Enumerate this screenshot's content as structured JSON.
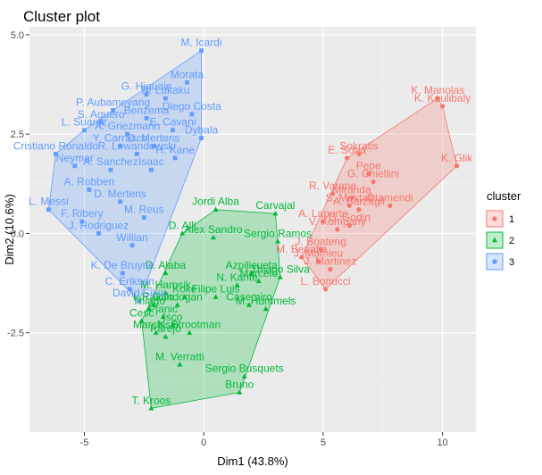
{
  "chart_data": {
    "type": "scatter",
    "title": "Cluster plot",
    "xlabel": "Dim1 (43.8%)",
    "ylabel": "Dim2 (10.6%)",
    "xlim": [
      -7.3,
      11.4
    ],
    "ylim": [
      -5.0,
      5.2
    ],
    "xticks": [
      -5,
      0,
      5,
      10
    ],
    "yticks": [
      -2.5,
      0.0,
      2.5,
      5.0
    ],
    "ytick_labels": [
      "-2.5",
      "0.0",
      "2.5",
      "5.0"
    ],
    "grid": true,
    "legend": {
      "title": "cluster",
      "position": "right"
    },
    "series": [
      {
        "name": "1",
        "color": "#F8766D",
        "points": [
          {
            "label": "K. Manolas",
            "x": 9.8,
            "y": 3.4
          },
          {
            "label": "K. Koulibaly",
            "x": 10.0,
            "y": 3.2
          },
          {
            "label": "K. Glik",
            "x": 10.6,
            "y": 1.7
          },
          {
            "label": "Sokratis",
            "x": 6.5,
            "y": 2.0
          },
          {
            "label": "E. Soria",
            "x": 6.0,
            "y": 1.9
          },
          {
            "label": "Pepe",
            "x": 6.9,
            "y": 1.5
          },
          {
            "label": "G. Chiellini",
            "x": 7.1,
            "y": 1.3
          },
          {
            "label": "R. Varane",
            "x": 5.4,
            "y": 1.0
          },
          {
            "label": "Miranda",
            "x": 6.2,
            "y": 0.9
          },
          {
            "label": "S. Mustafi",
            "x": 6.1,
            "y": 0.7
          },
          {
            "label": "A. Barzagli",
            "x": 6.5,
            "y": 0.6
          },
          {
            "label": "A. Laporte",
            "x": 5.0,
            "y": 0.3
          },
          {
            "label": "D. Godin",
            "x": 6.1,
            "y": 0.2
          },
          {
            "label": "V. Kompany",
            "x": 5.6,
            "y": 0.1
          },
          {
            "label": "J. Boateng",
            "x": 4.9,
            "y": -0.4
          },
          {
            "label": "M. Benatia",
            "x": 4.1,
            "y": -0.6
          },
          {
            "label": "J. Mathieu",
            "x": 4.8,
            "y": -0.7
          },
          {
            "label": "J. Martinez",
            "x": 5.3,
            "y": -0.9
          },
          {
            "label": "L. Bonucci",
            "x": 5.1,
            "y": -1.4
          },
          {
            "label": "Otamendi",
            "x": 7.8,
            "y": 0.7
          }
        ]
      },
      {
        "name": "2",
        "color": "#00BA38",
        "points": [
          {
            "label": "Jordi Alba",
            "x": 0.5,
            "y": 0.6
          },
          {
            "label": "Carvajal",
            "x": 3.0,
            "y": 0.5
          },
          {
            "label": "D. Alli",
            "x": -0.9,
            "y": 0.0
          },
          {
            "label": "Alex Sandro",
            "x": 0.4,
            "y": -0.1
          },
          {
            "label": "Sergio Ramos",
            "x": 3.1,
            "y": -0.2
          },
          {
            "label": "D. Alaba",
            "x": -1.6,
            "y": -1.0
          },
          {
            "label": "Thiago Silva",
            "x": 3.2,
            "y": -1.1
          },
          {
            "label": "Azpilicueta",
            "x": 2.0,
            "y": -1.0
          },
          {
            "label": "Marcelo",
            "x": 2.3,
            "y": -1.2
          },
          {
            "label": "N. Kante",
            "x": 1.4,
            "y": -1.3
          },
          {
            "label": "Filipe Luis",
            "x": 0.5,
            "y": -1.6
          },
          {
            "label": "M. Hamsik",
            "x": -1.6,
            "y": -1.5
          },
          {
            "label": "Koke",
            "x": -0.8,
            "y": -1.6
          },
          {
            "label": "Casemiro",
            "x": 1.9,
            "y": -1.8
          },
          {
            "label": "I. Rakitic",
            "x": -2.1,
            "y": -1.8
          },
          {
            "label": "M. Hummels",
            "x": 2.6,
            "y": -1.9
          },
          {
            "label": "T. Kroos",
            "x": -2.2,
            "y": -4.4
          },
          {
            "label": "M. Verratti",
            "x": -1.0,
            "y": -3.3
          },
          {
            "label": "Sergio Busquets",
            "x": 1.7,
            "y": -3.6
          },
          {
            "label": "Bruno",
            "x": 1.5,
            "y": -4.0
          },
          {
            "label": "K. Strootman",
            "x": -0.6,
            "y": -2.5
          },
          {
            "label": "Isco",
            "x": -1.3,
            "y": -2.3
          },
          {
            "label": "Cesc",
            "x": -2.6,
            "y": -2.2
          },
          {
            "label": "Marchisio",
            "x": -2.0,
            "y": -2.5
          },
          {
            "label": "Gundogan",
            "x": -1.1,
            "y": -1.8
          },
          {
            "label": "Parejo",
            "x": -1.6,
            "y": -2.6
          },
          {
            "label": "Pjanic",
            "x": -1.7,
            "y": -2.1
          },
          {
            "label": "Thiago",
            "x": -2.3,
            "y": -1.9
          }
        ]
      },
      {
        "name": "3",
        "color": "#619CFF",
        "points": [
          {
            "label": "M. Icardi",
            "x": -0.1,
            "y": 4.6
          },
          {
            "label": "Morata",
            "x": -0.7,
            "y": 3.8
          },
          {
            "label": "G. Higuain",
            "x": -2.4,
            "y": 3.5
          },
          {
            "label": "R. Lukaku",
            "x": -1.6,
            "y": 3.4
          },
          {
            "label": "P. Aubameyang",
            "x": -3.8,
            "y": 3.1
          },
          {
            "label": "Diego Costa",
            "x": -0.5,
            "y": 3.0
          },
          {
            "label": "S. Aguero",
            "x": -4.3,
            "y": 2.8
          },
          {
            "label": "Benzema",
            "x": -2.4,
            "y": 2.9
          },
          {
            "label": "E. Cavani",
            "x": -1.3,
            "y": 2.6
          },
          {
            "label": "L. Suarez",
            "x": -5.0,
            "y": 2.6
          },
          {
            "label": "A. Griezmann",
            "x": -3.2,
            "y": 2.5
          },
          {
            "label": "Y. Carrasco",
            "x": -3.5,
            "y": 2.2
          },
          {
            "label": "D. Mertens",
            "x": -2.1,
            "y": 2.2
          },
          {
            "label": "Dybala",
            "x": -0.1,
            "y": 2.4
          },
          {
            "label": "R. Lewandowski",
            "x": -2.8,
            "y": 2.0
          },
          {
            "label": "H. Kane",
            "x": -1.2,
            "y": 1.9
          },
          {
            "label": "Cristiano Ronaldo",
            "x": -6.2,
            "y": 2.0
          },
          {
            "label": "Neymar",
            "x": -5.4,
            "y": 1.7
          },
          {
            "label": "A. Sanchez",
            "x": -3.9,
            "y": 1.6
          },
          {
            "label": "Isaac",
            "x": -2.2,
            "y": 1.6
          },
          {
            "label": "A. Robben",
            "x": -4.8,
            "y": 1.1
          },
          {
            "label": "L. Messi",
            "x": -6.5,
            "y": 0.6
          },
          {
            "label": "D. Mertens",
            "x": -3.5,
            "y": 0.8
          },
          {
            "label": "F. Ribery",
            "x": -5.1,
            "y": 0.3
          },
          {
            "label": "J. Rodriguez",
            "x": -4.4,
            "y": 0.0
          },
          {
            "label": "Willian",
            "x": -3.0,
            "y": -0.3
          },
          {
            "label": "M. Reus",
            "x": -2.5,
            "y": 0.4
          },
          {
            "label": "K. De Bruyne",
            "x": -3.4,
            "y": -1.0
          },
          {
            "label": "C. Eriksen",
            "x": -3.1,
            "y": -1.4
          },
          {
            "label": "David Silva",
            "x": -2.7,
            "y": -1.7
          }
        ]
      }
    ]
  }
}
